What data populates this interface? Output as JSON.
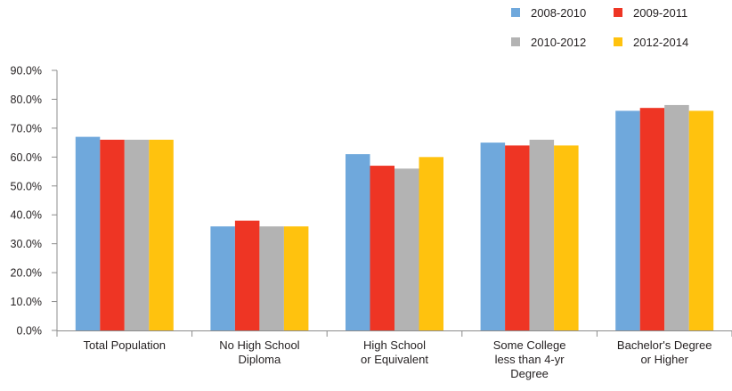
{
  "chart_data": {
    "type": "bar",
    "title": "",
    "xlabel": "",
    "ylabel": "",
    "ylim": [
      0,
      90
    ],
    "ytick_step": 10,
    "ytick_format": "percent_1dp",
    "grid": false,
    "legend_position": "top-right",
    "categories": [
      [
        "Total Population"
      ],
      [
        "No High School",
        "Diploma"
      ],
      [
        "High School",
        "or Equivalent"
      ],
      [
        "Some College",
        "less than  4-yr",
        "Degree"
      ],
      [
        "Bachelor's Degree",
        "or Higher"
      ]
    ],
    "series": [
      {
        "name": "2008-2010",
        "color": "#6fa8dc",
        "values": [
          67,
          36,
          61,
          65,
          76
        ]
      },
      {
        "name": "2009-2011",
        "color": "#ee3524",
        "values": [
          66,
          38,
          57,
          64,
          77
        ]
      },
      {
        "name": "2010-2012",
        "color": "#b3b3b3",
        "values": [
          66,
          36,
          56,
          66,
          78
        ]
      },
      {
        "name": "2012-2014",
        "color": "#ffc20e",
        "values": [
          66,
          36,
          60,
          64,
          76
        ]
      }
    ]
  }
}
